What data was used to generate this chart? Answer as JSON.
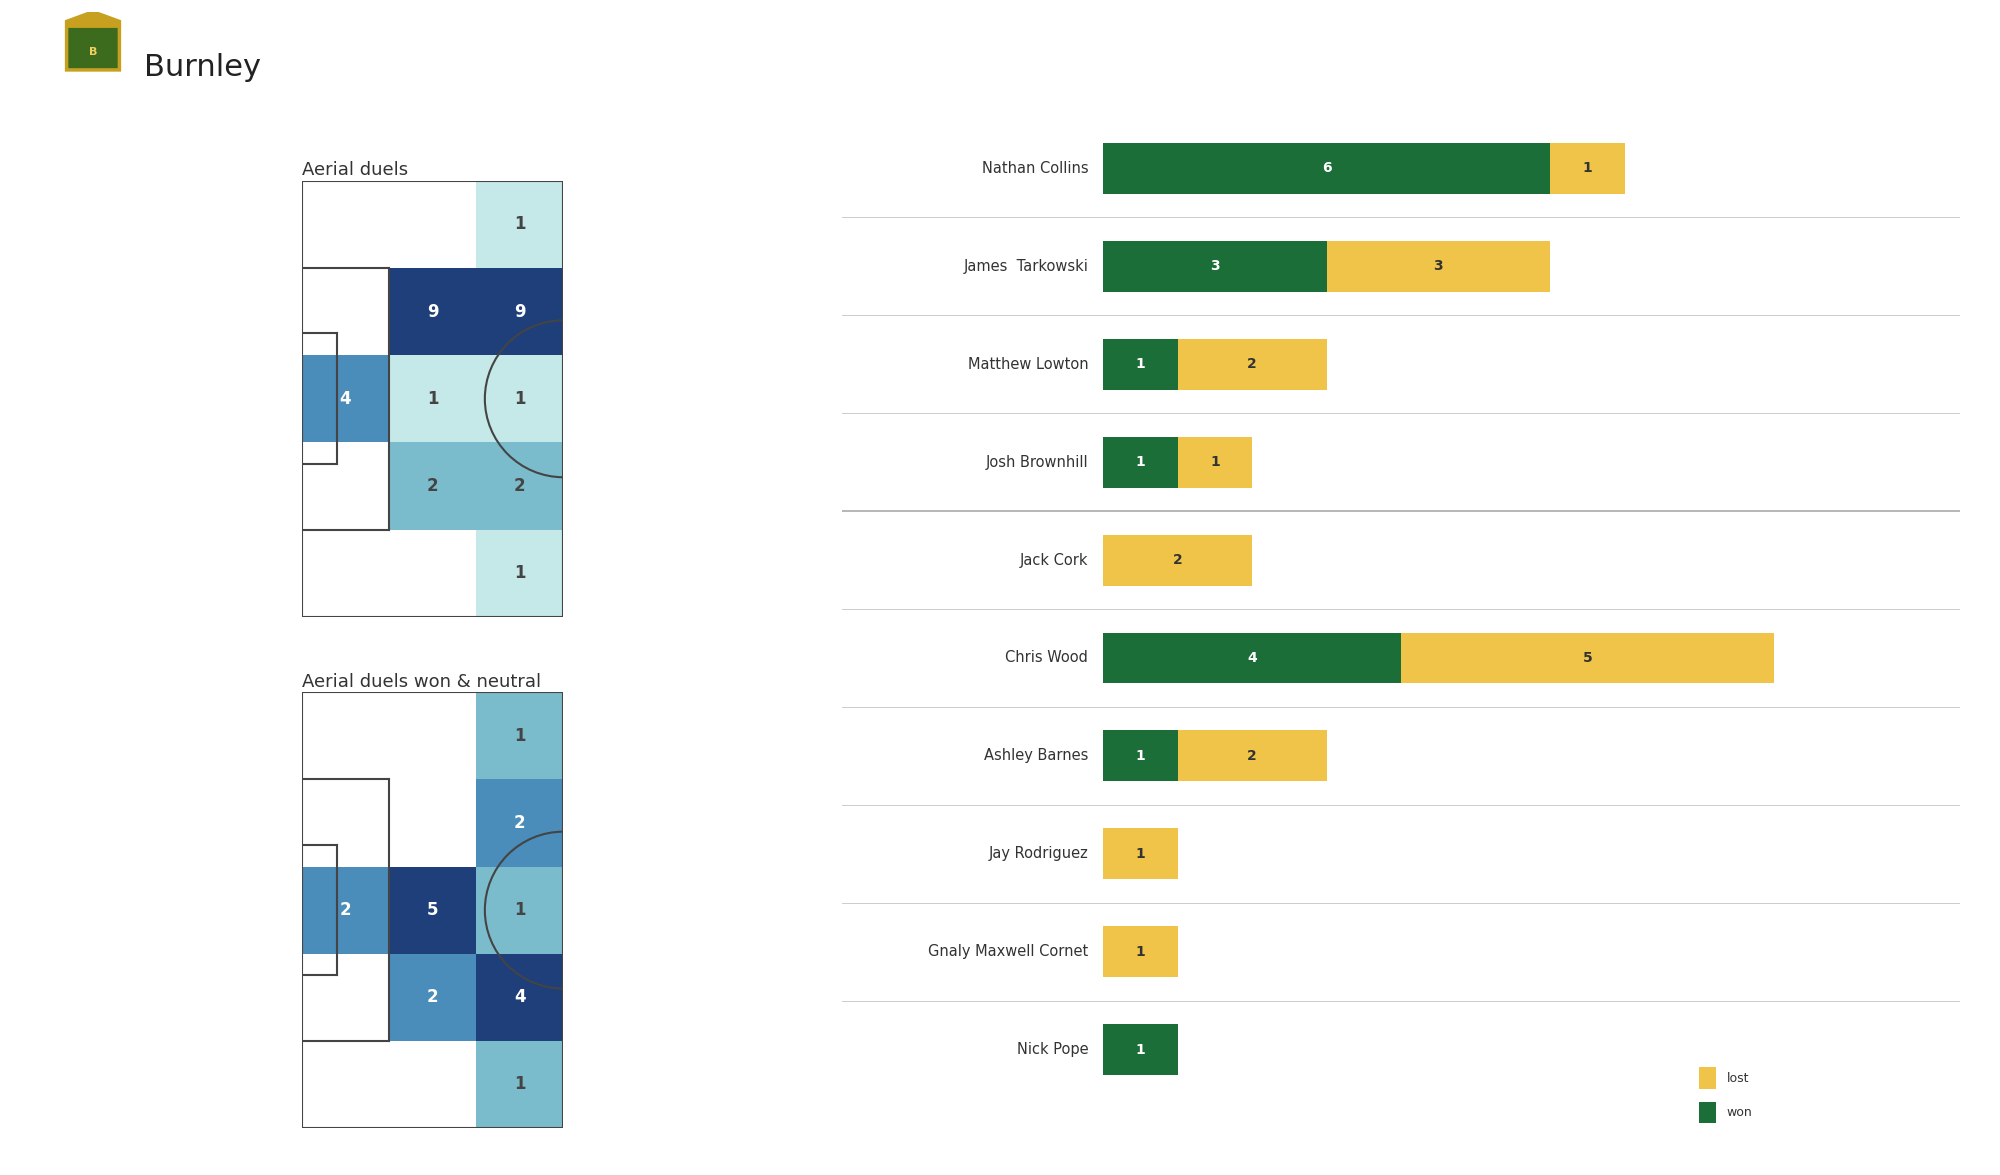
{
  "title": "Burnley",
  "subtitle_top": "Aerial duels",
  "subtitle_bottom": "Aerial duels won & neutral",
  "background_color": "#ffffff",
  "heatmap_top": {
    "grid_rows_cols": [
      [
        0,
        0,
        1
      ],
      [
        0,
        9,
        9
      ],
      [
        4,
        1,
        1
      ],
      [
        0,
        2,
        2
      ],
      [
        0,
        0,
        1
      ]
    ],
    "labels": [
      [
        null,
        null,
        1
      ],
      [
        null,
        9,
        9
      ],
      [
        4,
        1,
        1
      ],
      [
        null,
        2,
        2
      ],
      [
        null,
        null,
        1
      ]
    ]
  },
  "heatmap_bottom": {
    "grid_rows_cols": [
      [
        0,
        0,
        1
      ],
      [
        0,
        0,
        2
      ],
      [
        2,
        5,
        1
      ],
      [
        0,
        2,
        4
      ],
      [
        0,
        0,
        1
      ]
    ],
    "labels": [
      [
        null,
        null,
        1
      ],
      [
        null,
        null,
        2
      ],
      [
        2,
        5,
        1
      ],
      [
        null,
        2,
        4
      ],
      [
        null,
        null,
        1
      ]
    ]
  },
  "players": [
    {
      "name": "Nathan Collins",
      "won": 6,
      "lost": 1
    },
    {
      "name": "James  Tarkowski",
      "won": 3,
      "lost": 3
    },
    {
      "name": "Matthew Lowton",
      "won": 1,
      "lost": 2
    },
    {
      "name": "Josh Brownhill",
      "won": 1,
      "lost": 1
    },
    {
      "name": "Jack Cork",
      "won": 0,
      "lost": 2
    },
    {
      "name": "Chris Wood",
      "won": 4,
      "lost": 5
    },
    {
      "name": "Ashley Barnes",
      "won": 1,
      "lost": 2
    },
    {
      "name": "Jay Rodriguez",
      "won": 0,
      "lost": 1
    },
    {
      "name": "Gnaly Maxwell Cornet",
      "won": 0,
      "lost": 1
    },
    {
      "name": "Nick Pope",
      "won": 1,
      "lost": 0
    }
  ],
  "separator_after_indices": [
    4
  ],
  "color_won": "#1c6e38",
  "color_lost": "#f0c448",
  "color_separator": "#cccccc",
  "heatmap_color_0": "#ffffff",
  "heatmap_color_1": "#c5e8e8",
  "heatmap_color_2": "#7bbccc",
  "heatmap_color_3": "#4a8cba",
  "heatmap_color_4": "#1e3f7a",
  "pitch_line_color": "#444444",
  "pitch_bg_color": "#ffffff"
}
